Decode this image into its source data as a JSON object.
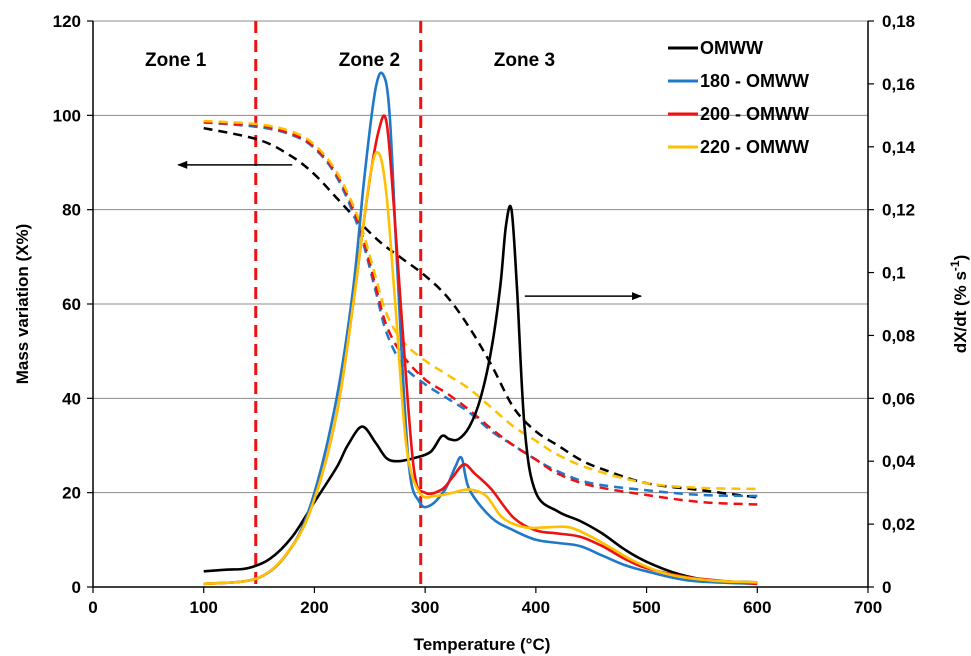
{
  "chart_data": {
    "type": "line",
    "xlabel": "Temperature (°C)",
    "ylabel": "Mass variation (X%)",
    "y2label": "dX/dt (% s",
    "y2label_sup": "-1",
    "y2label_end": ")",
    "xlim": [
      0,
      700
    ],
    "ylim": [
      0,
      120
    ],
    "y2lim": [
      0,
      0.18
    ],
    "xticks": [
      "0",
      "100",
      "200",
      "300",
      "400",
      "500",
      "600",
      "700"
    ],
    "yticks": [
      "0",
      "20",
      "40",
      "60",
      "80",
      "100",
      "120"
    ],
    "y2ticks": [
      "0",
      "0,02",
      "0,04",
      "0,06",
      "0,08",
      "0,1",
      "0,12",
      "0,14",
      "0,16",
      "0,18"
    ],
    "grid": "horizontal",
    "legend_position": "top-right",
    "zones": [
      {
        "label": "Zone 1",
        "x": 47
      },
      {
        "label": "Zone 2",
        "x": 222
      },
      {
        "label": "Zone 3",
        "x": 362
      }
    ],
    "zone_boundaries": [
      147,
      296
    ],
    "colors": {
      "OMWW": "#000000",
      "180": "#1f78c8",
      "200": "#ee1111",
      "220": "#ffc000",
      "zone_line": "#ee1111"
    },
    "series": [
      {
        "name": "OMWW",
        "color": "#000000",
        "mass": [
          [
            100,
            97.3
          ],
          [
            150,
            94.8
          ],
          [
            180,
            91.2
          ],
          [
            200,
            87.5
          ],
          [
            220,
            82.5
          ],
          [
            240,
            77.5
          ],
          [
            260,
            73
          ],
          [
            280,
            69.5
          ],
          [
            300,
            66
          ],
          [
            320,
            61.5
          ],
          [
            340,
            55
          ],
          [
            360,
            47
          ],
          [
            380,
            38
          ],
          [
            400,
            33
          ],
          [
            420,
            30
          ],
          [
            440,
            27
          ],
          [
            460,
            25
          ],
          [
            500,
            22
          ],
          [
            550,
            20.5
          ],
          [
            600,
            19
          ]
        ],
        "rate": [
          [
            100,
            0.005
          ],
          [
            120,
            0.0055
          ],
          [
            140,
            0.006
          ],
          [
            160,
            0.009
          ],
          [
            180,
            0.016
          ],
          [
            200,
            0.027
          ],
          [
            220,
            0.038
          ],
          [
            230,
            0.045
          ],
          [
            243,
            0.051
          ],
          [
            255,
            0.046
          ],
          [
            265,
            0.041
          ],
          [
            275,
            0.04
          ],
          [
            290,
            0.041
          ],
          [
            305,
            0.043
          ],
          [
            315,
            0.048
          ],
          [
            322,
            0.047
          ],
          [
            330,
            0.047
          ],
          [
            340,
            0.051
          ],
          [
            350,
            0.06
          ],
          [
            360,
            0.076
          ],
          [
            368,
            0.096
          ],
          [
            373,
            0.115
          ],
          [
            378,
            0.12
          ],
          [
            383,
            0.095
          ],
          [
            390,
            0.05
          ],
          [
            400,
            0.03
          ],
          [
            420,
            0.024
          ],
          [
            440,
            0.021
          ],
          [
            460,
            0.017
          ],
          [
            480,
            0.012
          ],
          [
            500,
            0.008
          ],
          [
            530,
            0.004
          ],
          [
            560,
            0.002
          ],
          [
            600,
            0.0015
          ]
        ]
      },
      {
        "name": "180 - OMWW",
        "color": "#1f78c8",
        "mass": [
          [
            100,
            98.5
          ],
          [
            150,
            97.5
          ],
          [
            180,
            95.8
          ],
          [
            200,
            93
          ],
          [
            220,
            87
          ],
          [
            240,
            76
          ],
          [
            255,
            63
          ],
          [
            265,
            54
          ],
          [
            280,
            47
          ],
          [
            300,
            43
          ],
          [
            320,
            40
          ],
          [
            340,
            37
          ],
          [
            360,
            33
          ],
          [
            380,
            30
          ],
          [
            400,
            27
          ],
          [
            420,
            24.5
          ],
          [
            450,
            22
          ],
          [
            500,
            20.5
          ],
          [
            550,
            19.5
          ],
          [
            600,
            19.3
          ]
        ],
        "rate": [
          [
            100,
            0.001
          ],
          [
            150,
            0.003
          ],
          [
            180,
            0.013
          ],
          [
            200,
            0.03
          ],
          [
            220,
            0.06
          ],
          [
            235,
            0.095
          ],
          [
            245,
            0.13
          ],
          [
            255,
            0.158
          ],
          [
            262,
            0.163
          ],
          [
            268,
            0.15
          ],
          [
            275,
            0.1
          ],
          [
            285,
            0.04
          ],
          [
            295,
            0.027
          ],
          [
            305,
            0.026
          ],
          [
            318,
            0.031
          ],
          [
            327,
            0.038
          ],
          [
            333,
            0.041
          ],
          [
            340,
            0.031
          ],
          [
            360,
            0.022
          ],
          [
            380,
            0.018
          ],
          [
            400,
            0.015
          ],
          [
            420,
            0.014
          ],
          [
            440,
            0.013
          ],
          [
            460,
            0.01
          ],
          [
            480,
            0.007
          ],
          [
            500,
            0.005
          ],
          [
            540,
            0.002
          ],
          [
            600,
            0.001
          ]
        ]
      },
      {
        "name": "200 - OMWW",
        "color": "#ee1111",
        "mass": [
          [
            100,
            98.5
          ],
          [
            150,
            97.8
          ],
          [
            180,
            96
          ],
          [
            200,
            93.3
          ],
          [
            220,
            87.5
          ],
          [
            240,
            77
          ],
          [
            255,
            64
          ],
          [
            265,
            55.5
          ],
          [
            280,
            49
          ],
          [
            300,
            44
          ],
          [
            320,
            41
          ],
          [
            340,
            37.5
          ],
          [
            360,
            33.5
          ],
          [
            380,
            30
          ],
          [
            400,
            27
          ],
          [
            420,
            24
          ],
          [
            450,
            21.5
          ],
          [
            500,
            19.5
          ],
          [
            550,
            18
          ],
          [
            600,
            17.5
          ]
        ],
        "rate": [
          [
            100,
            0.001
          ],
          [
            150,
            0.003
          ],
          [
            180,
            0.013
          ],
          [
            200,
            0.028
          ],
          [
            220,
            0.055
          ],
          [
            235,
            0.09
          ],
          [
            248,
            0.125
          ],
          [
            258,
            0.145
          ],
          [
            265,
            0.148
          ],
          [
            272,
            0.12
          ],
          [
            280,
            0.08
          ],
          [
            290,
            0.037
          ],
          [
            300,
            0.03
          ],
          [
            315,
            0.031
          ],
          [
            325,
            0.035
          ],
          [
            335,
            0.039
          ],
          [
            345,
            0.036
          ],
          [
            360,
            0.031
          ],
          [
            380,
            0.022
          ],
          [
            400,
            0.018
          ],
          [
            420,
            0.017
          ],
          [
            440,
            0.016
          ],
          [
            460,
            0.013
          ],
          [
            480,
            0.009
          ],
          [
            500,
            0.006
          ],
          [
            540,
            0.003
          ],
          [
            600,
            0.001
          ]
        ]
      },
      {
        "name": "220 - OMWW",
        "color": "#ffc000",
        "mass": [
          [
            100,
            98.8
          ],
          [
            150,
            98.1
          ],
          [
            180,
            96.5
          ],
          [
            200,
            93.8
          ],
          [
            220,
            88
          ],
          [
            240,
            78
          ],
          [
            255,
            66
          ],
          [
            265,
            58
          ],
          [
            280,
            52
          ],
          [
            300,
            48
          ],
          [
            320,
            45
          ],
          [
            340,
            42
          ],
          [
            360,
            38
          ],
          [
            380,
            34
          ],
          [
            400,
            31
          ],
          [
            420,
            28
          ],
          [
            450,
            25
          ],
          [
            500,
            22
          ],
          [
            550,
            21
          ],
          [
            600,
            20.8
          ]
        ],
        "rate": [
          [
            100,
            0.001
          ],
          [
            150,
            0.003
          ],
          [
            180,
            0.013
          ],
          [
            200,
            0.028
          ],
          [
            220,
            0.055
          ],
          [
            235,
            0.09
          ],
          [
            250,
            0.13
          ],
          [
            258,
            0.138
          ],
          [
            265,
            0.125
          ],
          [
            273,
            0.09
          ],
          [
            283,
            0.045
          ],
          [
            295,
            0.03
          ],
          [
            310,
            0.029
          ],
          [
            325,
            0.03
          ],
          [
            340,
            0.031
          ],
          [
            355,
            0.029
          ],
          [
            370,
            0.022
          ],
          [
            390,
            0.019
          ],
          [
            410,
            0.019
          ],
          [
            430,
            0.019
          ],
          [
            450,
            0.016
          ],
          [
            470,
            0.012
          ],
          [
            490,
            0.008
          ],
          [
            520,
            0.004
          ],
          [
            560,
            0.002
          ],
          [
            600,
            0.0015
          ]
        ]
      }
    ]
  }
}
